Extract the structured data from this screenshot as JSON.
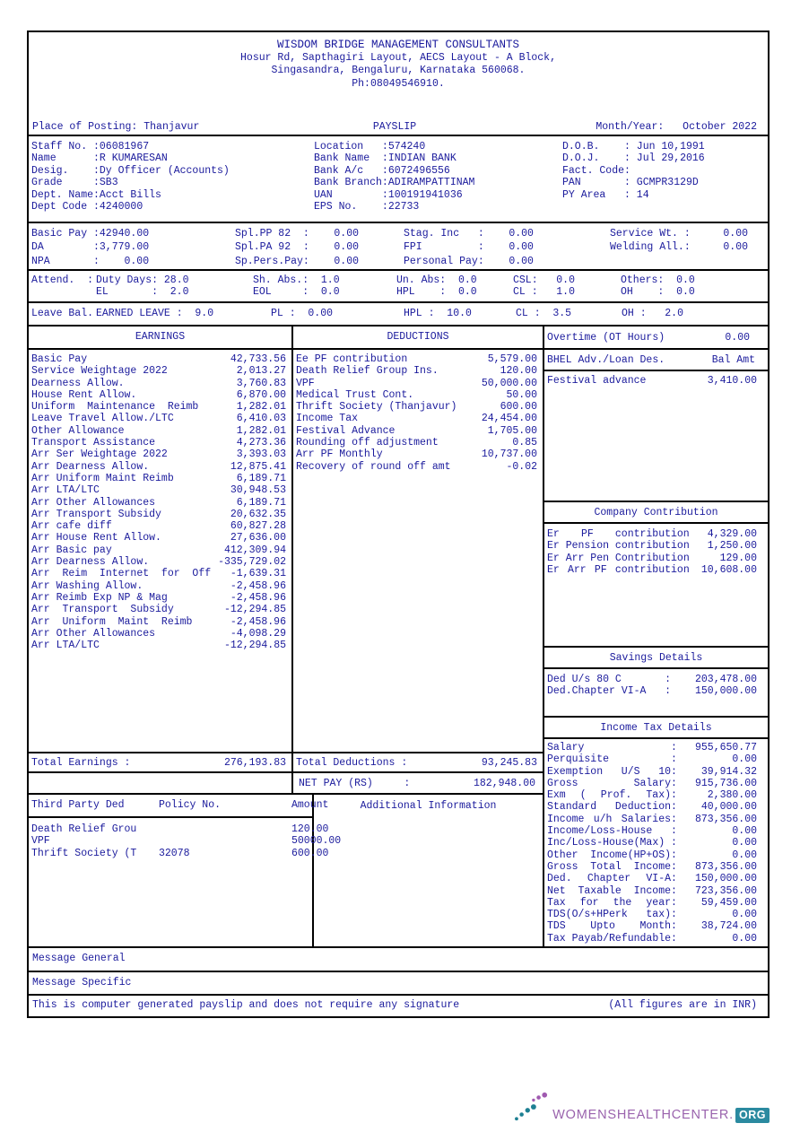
{
  "colors": {
    "text": "#1a1a9c",
    "border": "#000000",
    "brand_purple": "#9a63ad",
    "brand_teal": "#2b8aa0"
  },
  "company": {
    "name": "WISDOM BRIDGE MANAGEMENT CONSULTANTS",
    "address1": "Hosur Rd, Sapthagiri Layout, AECS Layout - A Block,",
    "address2": "Singasandra, Bengaluru, Karnataka 560068.",
    "phone": "Ph:08049546910."
  },
  "posting": {
    "place_label": "Place of Posting:",
    "place": "Thanjavur",
    "title": "PAYSLIP",
    "month_label": "Month/Year:",
    "month": "October 2022"
  },
  "employee": {
    "col1": [
      {
        "label": "Staff No.",
        "value": "06081967"
      },
      {
        "label": "Name",
        "value": "R KUMARESAN"
      },
      {
        "label": "Desig.",
        "value": "Dy Officer (Accounts)"
      },
      {
        "label": "Grade",
        "value": "SB3"
      },
      {
        "label": "Dept. Name",
        "value": "Acct Bills"
      },
      {
        "label": "Dept Code",
        "value": "4240000"
      }
    ],
    "col2": [
      {
        "label": "Location",
        "value": "574240"
      },
      {
        "label": "Bank Name",
        "value": "INDIAN BANK"
      },
      {
        "label": "Bank A/c",
        "value": "6072496556"
      },
      {
        "label": "Bank Branch",
        "value": "ADIRAMPATTINAM"
      },
      {
        "label": "UAN",
        "value": "100191941036"
      },
      {
        "label": "EPS No.",
        "value": "22733"
      }
    ],
    "col3": [
      {
        "label": "D.O.B.",
        "value": "Jun 10,1991"
      },
      {
        "label": "D.O.J.",
        "value": "Jul 29,2016"
      },
      {
        "label": "Fact. Code",
        "value": ""
      },
      {
        "label": "PAN",
        "value": "GCMPR3129D"
      },
      {
        "label": "PY Area",
        "value": "14"
      }
    ]
  },
  "pay": {
    "rows": [
      [
        {
          "label": "Basic Pay",
          "value": "42940.00"
        },
        {
          "label": "Spl.PP 82",
          "value": "0.00"
        },
        {
          "label": "Stag. Inc",
          "value": "0.00"
        },
        {
          "label": "Service Wt.",
          "value": "0.00"
        }
      ],
      [
        {
          "label": "DA",
          "value": "3,779.00"
        },
        {
          "label": "Spl.PA 92",
          "value": "0.00"
        },
        {
          "label": "FPI",
          "value": "0.00"
        },
        {
          "label": "Welding All.",
          "value": "0.00"
        }
      ],
      [
        {
          "label": "NPA",
          "value": "0.00"
        },
        {
          "label": "Sp.Pers.Pay",
          "value": "0.00"
        },
        {
          "label": "Personal Pay",
          "value": "0.00"
        },
        {}
      ]
    ]
  },
  "attendance": {
    "rows": [
      [
        {
          "t": "Attend. :",
          "v": ""
        },
        {
          "t": "Duty Days:",
          "v": "28.0"
        },
        {
          "t": "Sh. Abs.:",
          "v": "1.0"
        },
        {
          "t": "Un. Abs:",
          "v": "0.0"
        },
        {
          "t": "CSL:",
          "v": "0.0"
        },
        {
          "t": "Others:",
          "v": "0.0"
        }
      ],
      [
        {
          "t": "",
          "v": ""
        },
        {
          "t": "EL :",
          "v": "2.0"
        },
        {
          "t": "EOL :",
          "v": "0.0"
        },
        {
          "t": "HPL :",
          "v": "0.0"
        },
        {
          "t": "CL :",
          "v": "1.0"
        },
        {
          "t": "OH :",
          "v": "0.0"
        }
      ]
    ]
  },
  "leave_balance": {
    "cells": [
      {
        "t": "Leave Bal.",
        "v": ""
      },
      {
        "t": "EARNED LEAVE :",
        "v": "9.0"
      },
      {
        "t": "PL :",
        "v": "0.00"
      },
      {
        "t": "HPL :",
        "v": "10.0"
      },
      {
        "t": "CL :",
        "v": "3.5"
      },
      {
        "t": "OH :",
        "v": "2.0"
      }
    ]
  },
  "earnings": {
    "title": "EARNINGS",
    "items": [
      {
        "name": "Basic Pay",
        "amount": "42,733.56"
      },
      {
        "name": "Service Weightage 2022",
        "amount": "2,013.27"
      },
      {
        "name": "Dearness Allow.",
        "amount": "3,760.83"
      },
      {
        "name": "House Rent Allow.",
        "amount": "6,870.00"
      },
      {
        "name": "Uniform  Maintenance  Reimb",
        "amount": "1,282.01"
      },
      {
        "name": "Leave Travel Allow./LTC",
        "amount": "6,410.03"
      },
      {
        "name": "Other Allowance",
        "amount": "1,282.01"
      },
      {
        "name": "Transport Assistance",
        "amount": "4,273.36"
      },
      {
        "name": "Arr Ser Weightage 2022",
        "amount": "3,393.03"
      },
      {
        "name": "Arr Dearness Allow.",
        "amount": "12,875.41"
      },
      {
        "name": "Arr Uniform Maint Reimb",
        "amount": "6,189.71"
      },
      {
        "name": "Arr LTA/LTC",
        "amount": "30,948.53"
      },
      {
        "name": "Arr Other Allowances",
        "amount": "6,189.71"
      },
      {
        "name": "Arr Transport Subsidy",
        "amount": "20,632.35"
      },
      {
        "name": "Arr cafe diff",
        "amount": "60,827.28"
      },
      {
        "name": "Arr House Rent Allow.",
        "amount": "27,636.00"
      },
      {
        "name": "Arr Basic pay",
        "amount": "412,309.94"
      },
      {
        "name": "Arr Dearness Allow.",
        "amount": "-335,729.02"
      },
      {
        "name": "Arr  Reim  Internet  for  Off",
        "amount": "-1,639.31"
      },
      {
        "name": "Arr Washing Allow.",
        "amount": "-2,458.96"
      },
      {
        "name": "Arr Reimb Exp NP & Mag",
        "amount": "-2,458.96"
      },
      {
        "name": "Arr  Transport  Subsidy",
        "amount": "-12,294.85"
      },
      {
        "name": "Arr  Uniform  Maint  Reimb",
        "amount": "-2,458.96"
      },
      {
        "name": "Arr Other Allowances",
        "amount": "-4,098.29"
      },
      {
        "name": "Arr LTA/LTC",
        "amount": "-12,294.85"
      }
    ],
    "total_label": "Total Earnings :",
    "total": "276,193.83"
  },
  "deductions": {
    "title": "DEDUCTIONS",
    "items": [
      {
        "name": "Ee PF contribution",
        "amount": "5,579.00"
      },
      {
        "name": "Death Relief Group Ins.",
        "amount": "120.00"
      },
      {
        "name": "VPF",
        "amount": "50,000.00"
      },
      {
        "name": "Medical Trust Cont.",
        "amount": "50.00"
      },
      {
        "name": "Thrift Society (Thanjavur)",
        "amount": "600.00"
      },
      {
        "name": "Income Tax",
        "amount": "24,454.00"
      },
      {
        "name": "Festival Advance",
        "amount": "1,705.00"
      },
      {
        "name": "Rounding off adjustment",
        "amount": "0.85"
      },
      {
        "name": "Arr PF Monthly",
        "amount": "10,737.00"
      },
      {
        "name": "Recovery of round off amt",
        "amount": "-0.02"
      }
    ],
    "total_label": "Total Deductions :",
    "total": "93,245.83"
  },
  "net_pay": {
    "label": "NET PAY (RS)",
    "value": "182,948.00"
  },
  "overtime": {
    "label": "Overtime (OT Hours)",
    "value": "0.00"
  },
  "loans": {
    "header_label": "BHEL Adv./Loan Des.",
    "header_value": "Bal Amt",
    "items": [
      {
        "name": "Festival advance",
        "amount": "3,410.00"
      }
    ]
  },
  "company_contribution": {
    "title": "Company Contribution",
    "items": [
      {
        "label": "Er PF contribution",
        "amount": "4,329.00"
      },
      {
        "label": "Er Pension contribution",
        "amount": "1,250.00"
      },
      {
        "label": "Er Arr Pen Contribution",
        "amount": "129.00"
      },
      {
        "label": "Er Arr PF contribution",
        "amount": "10,608.00"
      }
    ]
  },
  "savings": {
    "title": "Savings Details",
    "items": [
      {
        "label": "Ded U/s 80 C",
        "value": "203,478.00"
      },
      {
        "label": "Ded.Chapter VI-A",
        "value": "150,000.00"
      }
    ]
  },
  "income_tax": {
    "title": "Income Tax Details",
    "items": [
      {
        "label": "Salary",
        "value": "955,650.77"
      },
      {
        "label": "Perquisite",
        "value": "0.00"
      },
      {
        "label": "Exemption U/S 10",
        "value": "39,914.32"
      },
      {
        "label": "Gross Salary",
        "value": "915,736.00"
      },
      {
        "label": "Exm ( Prof. Tax)",
        "value": "2,380.00"
      },
      {
        "label": "Standard Deduction",
        "value": "40,000.00"
      },
      {
        "label": "Income u/h Salaries",
        "value": "873,356.00"
      },
      {
        "label": "Income/Loss-House",
        "value": "0.00"
      },
      {
        "label": "Inc/Loss-House(Max)",
        "value": "0.00"
      },
      {
        "label": "Other Income(HP+OS)",
        "value": "0.00"
      },
      {
        "label": "Gross Total Income",
        "value": "873,356.00"
      },
      {
        "label": "Ded. Chapter VI-A",
        "value": "150,000.00"
      },
      {
        "label": "Net Taxable Income",
        "value": "723,356.00"
      },
      {
        "label": "Tax for the year",
        "value": "59,459.00"
      },
      {
        "label": "TDS(O/s+HPerk tax)",
        "value": "0.00"
      },
      {
        "label": "TDS Upto Month",
        "value": "38,724.00"
      },
      {
        "label": "Tax Payab/Refundable",
        "value": "0.00"
      }
    ]
  },
  "third_party": {
    "headers": [
      "Third Party Ded",
      "Policy No.",
      "Amount"
    ],
    "rows": [
      {
        "name": "Death Relief Grou",
        "policy": "",
        "amount": "120.00"
      },
      {
        "name": "VPF",
        "policy": "",
        "amount": "50000.00"
      },
      {
        "name": "Thrift Society (T",
        "policy": "32078",
        "amount": "600.00"
      }
    ]
  },
  "additional_info": {
    "title": "Additional Information"
  },
  "messages": {
    "general": "Message General",
    "specific": "Message Specific"
  },
  "footer": {
    "note": "This is computer generated payslip and does not require any signature",
    "currency_note": "(All figures are in INR)"
  },
  "branding": {
    "site": "WOMENSHEALTHCENTER.",
    "tld": "ORG"
  }
}
